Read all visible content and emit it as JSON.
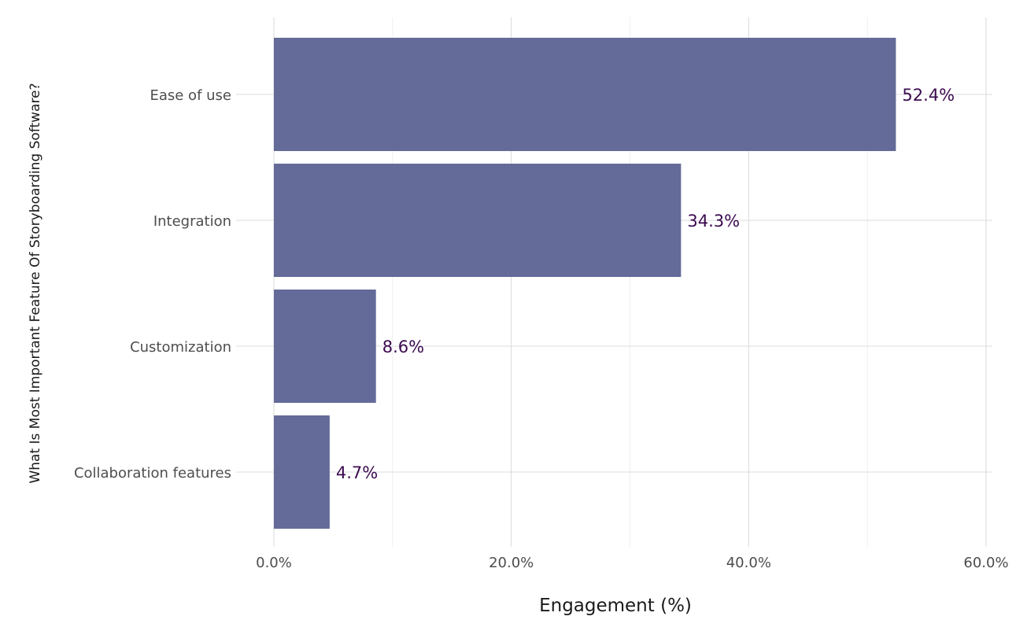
{
  "chart_data": {
    "type": "bar",
    "orientation": "horizontal",
    "title": "",
    "xlabel": "Engagement (%)",
    "ylabel": "What Is Most Important Feature Of Storyboarding Software?",
    "categories": [
      "Ease of use",
      "Integration",
      "Customization",
      "Collaboration features"
    ],
    "values": [
      52.4,
      34.3,
      8.6,
      4.7
    ],
    "data_labels": [
      "52.4%",
      "34.3%",
      "8.6%",
      "4.7%"
    ],
    "xlim": [
      0,
      60
    ],
    "x_ticks": [
      0,
      20,
      40,
      60
    ],
    "x_tick_labels": [
      "0.0%",
      "20.0%",
      "40.0%",
      "60.0%"
    ],
    "grid": true,
    "legend": "none",
    "bar_color": "#646b99",
    "data_label_color": "#3b0a4f"
  }
}
